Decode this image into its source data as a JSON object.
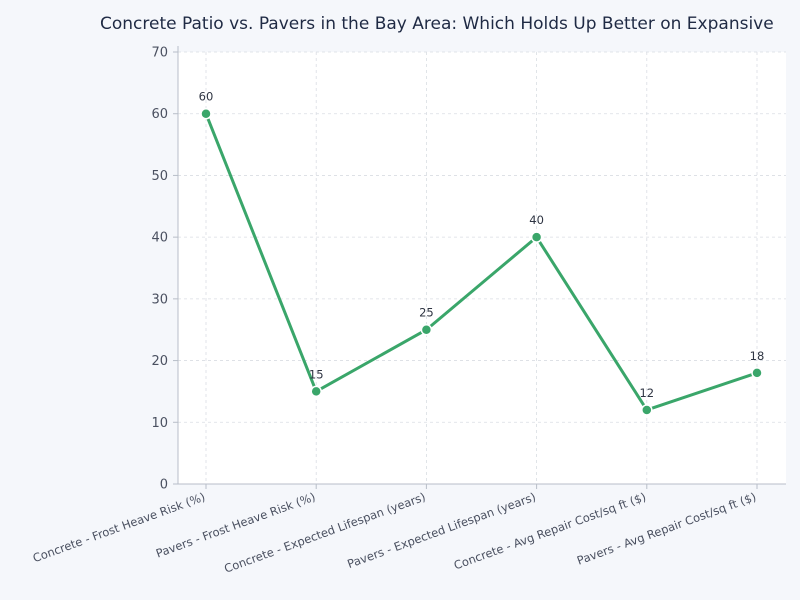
{
  "chart_data": {
    "type": "line",
    "title": "Concrete Patio vs. Pavers in the Bay Area: Which Holds Up Better on Expansive",
    "xlabel": "",
    "ylabel": "",
    "categories": [
      "Concrete - Frost Heave Risk (%)",
      "Pavers - Frost Heave Risk (%)",
      "Concrete - Expected Lifespan (years)",
      "Pavers - Expected Lifespan (years)",
      "Concrete - Avg Repair Cost/sq ft ($)",
      "Pavers - Avg Repair Cost/sq ft ($)"
    ],
    "series": [
      {
        "values": [
          60,
          15,
          25,
          40,
          12,
          18
        ],
        "color": "#3aa66a"
      }
    ],
    "ylim": [
      0,
      70
    ],
    "yticks": [
      0,
      10,
      20,
      30,
      40,
      50,
      60,
      70
    ],
    "grid": true,
    "legend": "none"
  }
}
